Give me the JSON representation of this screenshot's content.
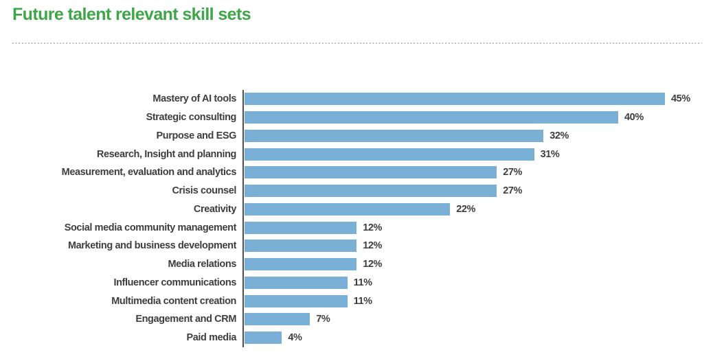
{
  "page": {
    "background": "#ffffff"
  },
  "header": {
    "title": "Future talent relevant skill sets",
    "title_color": "#3fa648",
    "rule_color": "#bfbfbf"
  },
  "chart_data": {
    "type": "bar",
    "orientation": "horizontal",
    "title": "Future talent relevant skill sets",
    "xlabel": "",
    "ylabel": "",
    "xlim": [
      0,
      48
    ],
    "grid": false,
    "legend": false,
    "value_suffix": "%",
    "bar_color": "#7ab0d6",
    "label_color": "#3e3e3e",
    "axis_line_color": "#4f4f4f",
    "categories": [
      "Mastery of AI tools",
      "Strategic consulting",
      "Purpose and ESG",
      "Research, Insight and planning",
      "Measurement, evaluation and analytics",
      "Crisis counsel",
      "Creativity",
      "Social media community management",
      "Marketing and business development",
      "Media relations",
      "Influencer communications",
      "Multimedia content creation",
      "Engagement and CRM",
      "Paid media"
    ],
    "values": [
      45,
      40,
      32,
      31,
      27,
      27,
      22,
      12,
      12,
      12,
      11,
      11,
      7,
      4
    ]
  }
}
